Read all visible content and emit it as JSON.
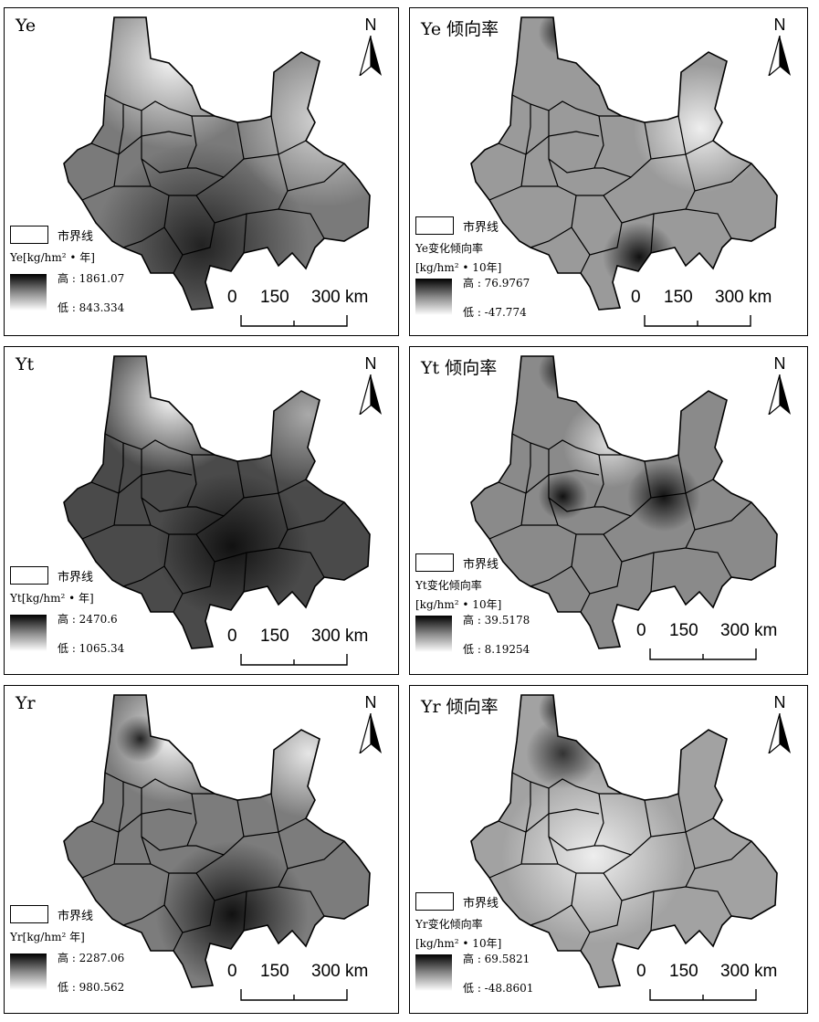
{
  "map_common": {
    "north_label": "N",
    "boundary_legend_label": "市界线",
    "scale_labels": [
      "0",
      "150",
      "300 km"
    ]
  },
  "panels": [
    {
      "title": "Ye",
      "unit": "Ye[kg/hm² • 年]",
      "high": "高 : 1861.07",
      "low": "低 : 843.334"
    },
    {
      "title": "Ye 倾向率",
      "unit_line1": "Ye变化倾向率",
      "unit_line2": "[kg/hm² • 10年]",
      "high": "高 : 76.9767",
      "low": "低 : -47.774"
    },
    {
      "title": "Yt",
      "unit": "Yt[kg/hm² • 年]",
      "high": "高 : 2470.6",
      "low": "低 : 1065.34"
    },
    {
      "title": "Yt 倾向率",
      "unit_line1": "Yt变化倾向率",
      "unit_line2": "[kg/hm² • 10年]",
      "high": "高 : 39.5178",
      "low": "低 : 8.19254"
    },
    {
      "title": "Yr",
      "unit": "Yr[kg/hm² 年]",
      "high": "高 : 2287.06",
      "low": "低 : 980.562"
    },
    {
      "title": "Yr 倾向率",
      "unit_line1": "Yr变化倾向率",
      "unit_line2": "[kg/hm² • 10年]",
      "high": "高 : 69.5821",
      "low": "低 : -48.8601"
    }
  ],
  "colors": {
    "ramp_high": "#000000",
    "ramp_low": "#ffffff",
    "border": "#000000"
  }
}
